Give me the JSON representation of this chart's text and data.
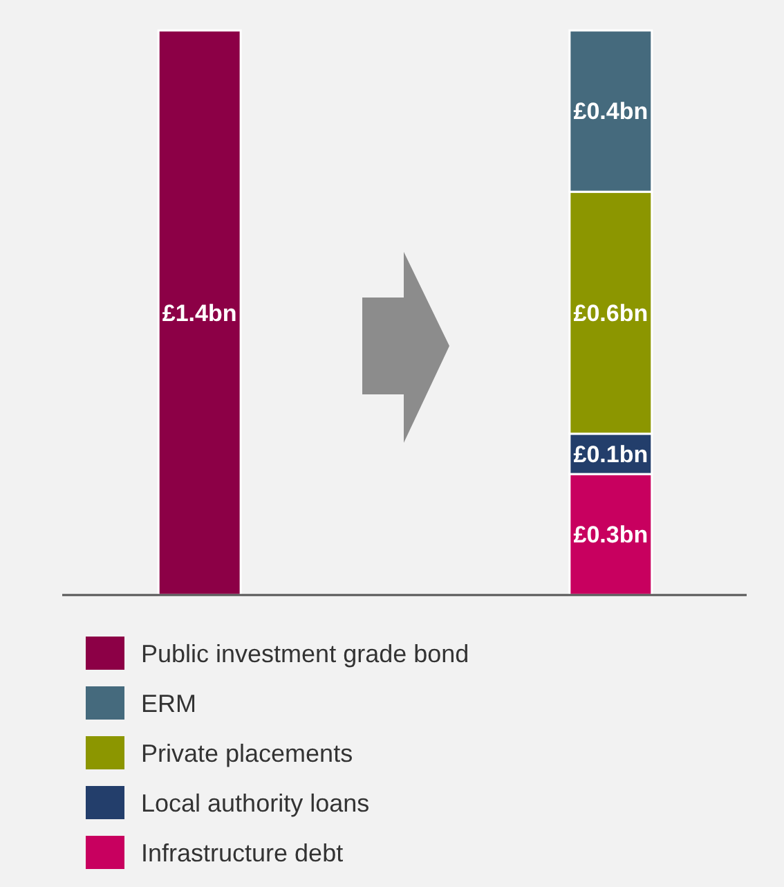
{
  "chart_data": {
    "type": "bar",
    "stacked": true,
    "categories": [
      null,
      null
    ],
    "legend": "bottom",
    "series": [
      {
        "name": "Infrastructure debt",
        "color": "#c8005f",
        "values": [
          null,
          0.3
        ],
        "value_labels": [
          null,
          "£0.3bn"
        ]
      },
      {
        "name": "Local authority loans",
        "color": "#233e6b",
        "values": [
          null,
          0.1
        ],
        "value_labels": [
          null,
          "£0.1bn"
        ]
      },
      {
        "name": "Private placements",
        "color": "#8c9600",
        "values": [
          null,
          0.6
        ],
        "value_labels": [
          null,
          "£0.6bn"
        ]
      },
      {
        "name": "ERM",
        "color": "#456a7d",
        "values": [
          null,
          0.4
        ],
        "value_labels": [
          null,
          "£0.4bn"
        ]
      },
      {
        "name": "Public investment grade bond",
        "color": "#8c0046",
        "values": [
          1.4,
          null
        ],
        "value_labels": [
          "£1.4bn",
          null
        ]
      }
    ]
  }
}
